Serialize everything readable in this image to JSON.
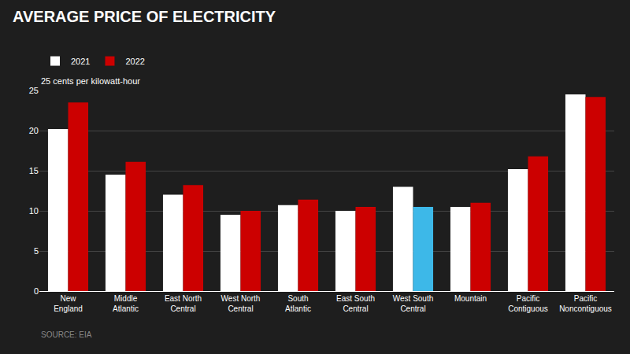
{
  "chart_data": {
    "type": "bar",
    "title": "AVERAGE PRICE OF ELECTRICITY",
    "subtitle": "25 cents per kilowatt-hour",
    "annotations": [
      "SOURCE: EIA"
    ],
    "categories": [
      "New\nEngland",
      "Middle\nAtlantic",
      "East North\nCentral",
      "West North\nCentral",
      "South\nAtlantic",
      "East South\nCentral",
      "West South\nCentral",
      "Mountain",
      "Pacific\nContiguous",
      "Pacific\nNoncontiguous"
    ],
    "series": [
      {
        "name": "2021",
        "color": "#ffffff",
        "values": [
          20.2,
          14.5,
          12.0,
          9.5,
          10.7,
          10.0,
          13.0,
          10.5,
          15.2,
          24.5
        ]
      },
      {
        "name": "2022",
        "colors": [
          "#cc0000",
          "#cc0000",
          "#cc0000",
          "#cc0000",
          "#cc0000",
          "#cc0000",
          "#3db8e8",
          "#cc0000",
          "#cc0000",
          "#cc0000"
        ],
        "values": [
          23.5,
          16.1,
          13.2,
          10.0,
          11.4,
          10.5,
          10.5,
          11.0,
          16.8,
          24.2
        ]
      }
    ],
    "ylim": [
      0,
      25
    ],
    "yticks": [
      0,
      5,
      10,
      15,
      20,
      25
    ],
    "grid": true,
    "legend": "upper left"
  }
}
